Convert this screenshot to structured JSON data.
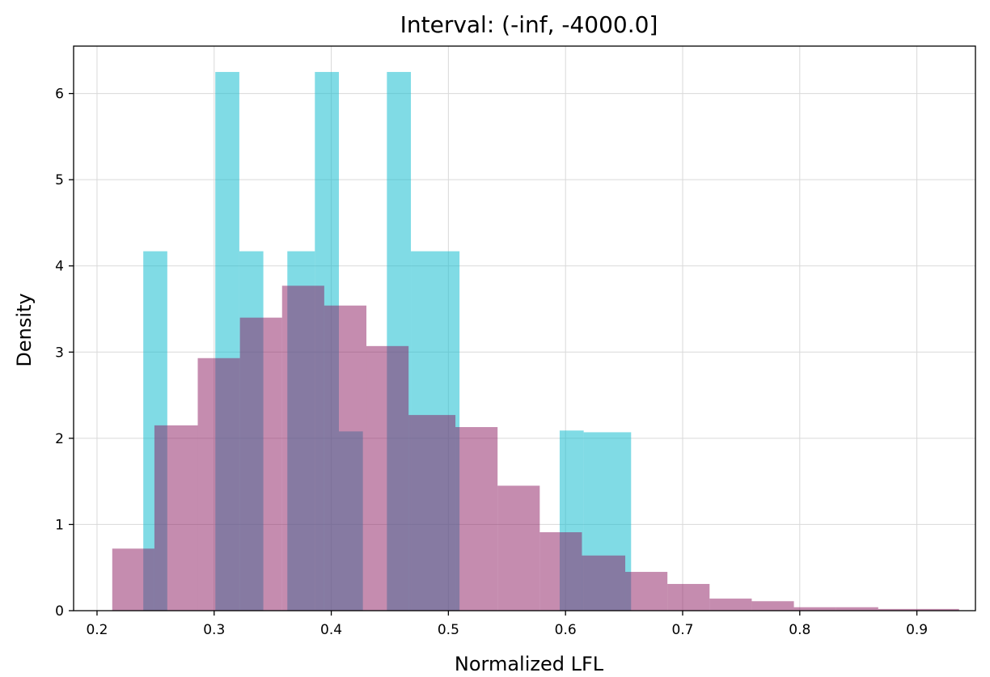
{
  "chart_data": {
    "type": "bar",
    "title": "Interval: (-inf, -4000.0]",
    "xlabel": "Normalized LFL",
    "ylabel": "Density",
    "xlim": [
      0.18,
      0.95
    ],
    "ylim": [
      0,
      6.55
    ],
    "grid": true,
    "x_ticks": [
      0.2,
      0.3,
      0.4,
      0.5,
      0.6,
      0.7,
      0.8,
      0.9
    ],
    "y_ticks": [
      0,
      1,
      2,
      3,
      4,
      5,
      6
    ],
    "colors": {
      "cyan": "#17becf",
      "magenta": "#8b1a5f",
      "grid": "#d9d9d9"
    },
    "series": [
      {
        "color": "#17becf",
        "opacity": 0.55,
        "bins": [
          {
            "x0": 0.2395,
            "x1": 0.26,
            "value": 4.17
          },
          {
            "x0": 0.26,
            "x1": 0.2805,
            "value": 0
          },
          {
            "x0": 0.2805,
            "x1": 0.301,
            "value": 0
          },
          {
            "x0": 0.301,
            "x1": 0.3215,
            "value": 6.25
          },
          {
            "x0": 0.3215,
            "x1": 0.342,
            "value": 4.17
          },
          {
            "x0": 0.342,
            "x1": 0.3625,
            "value": 0
          },
          {
            "x0": 0.3625,
            "x1": 0.386,
            "value": 4.17
          },
          {
            "x0": 0.386,
            "x1": 0.4065,
            "value": 6.25
          },
          {
            "x0": 0.4065,
            "x1": 0.427,
            "value": 2.08
          },
          {
            "x0": 0.427,
            "x1": 0.4475,
            "value": 0
          },
          {
            "x0": 0.4475,
            "x1": 0.468,
            "value": 6.25
          },
          {
            "x0": 0.468,
            "x1": 0.5095,
            "value": 4.17
          },
          {
            "x0": 0.5095,
            "x1": 0.595,
            "value": 0
          },
          {
            "x0": 0.595,
            "x1": 0.6155,
            "value": 2.09
          },
          {
            "x0": 0.6155,
            "x1": 0.656,
            "value": 2.07
          }
        ]
      },
      {
        "color": "#8b1a5f",
        "opacity": 0.5,
        "bins": [
          {
            "x0": 0.213,
            "x1": 0.249,
            "value": 0.72
          },
          {
            "x0": 0.249,
            "x1": 0.259,
            "value": 2.15
          },
          {
            "x0": 0.259,
            "x1": 0.286,
            "value": 2.15
          },
          {
            "x0": 0.286,
            "x1": 0.322,
            "value": 2.93
          },
          {
            "x0": 0.322,
            "x1": 0.358,
            "value": 3.4
          },
          {
            "x0": 0.358,
            "x1": 0.394,
            "value": 3.77
          },
          {
            "x0": 0.394,
            "x1": 0.43,
            "value": 3.54
          },
          {
            "x0": 0.43,
            "x1": 0.466,
            "value": 3.07
          },
          {
            "x0": 0.466,
            "x1": 0.506,
            "value": 2.27
          },
          {
            "x0": 0.506,
            "x1": 0.542,
            "value": 2.13
          },
          {
            "x0": 0.542,
            "x1": 0.578,
            "value": 1.45
          },
          {
            "x0": 0.578,
            "x1": 0.614,
            "value": 0.91
          },
          {
            "x0": 0.614,
            "x1": 0.651,
            "value": 0.64
          },
          {
            "x0": 0.651,
            "x1": 0.687,
            "value": 0.45
          },
          {
            "x0": 0.687,
            "x1": 0.723,
            "value": 0.31
          },
          {
            "x0": 0.723,
            "x1": 0.759,
            "value": 0.14
          },
          {
            "x0": 0.759,
            "x1": 0.795,
            "value": 0.11
          },
          {
            "x0": 0.795,
            "x1": 0.831,
            "value": 0.04
          },
          {
            "x0": 0.831,
            "x1": 0.867,
            "value": 0.04
          },
          {
            "x0": 0.867,
            "x1": 0.903,
            "value": 0.02
          },
          {
            "x0": 0.903,
            "x1": 0.936,
            "value": 0.02
          }
        ]
      }
    ]
  }
}
